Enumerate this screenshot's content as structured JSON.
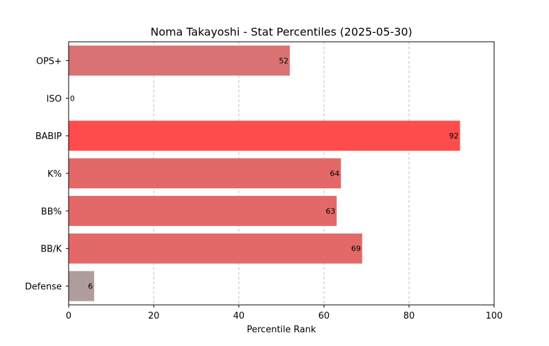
{
  "chart_data": {
    "type": "bar",
    "orientation": "horizontal",
    "title": "Noma Takayoshi - Stat Percentiles (2025-05-30)",
    "xlabel": "Percentile Rank",
    "ylabel": "",
    "xlim": [
      0,
      100
    ],
    "xticks": [
      0,
      20,
      40,
      60,
      80,
      100
    ],
    "grid": "x-dashed",
    "categories": [
      "OPS+",
      "ISO",
      "BABIP",
      "K%",
      "BB%",
      "BB/K",
      "Defense"
    ],
    "values": [
      52,
      0,
      92,
      64,
      63,
      69,
      6
    ],
    "colors": [
      "#d97373",
      "#d97373",
      "#ff4d4d",
      "#e36969",
      "#e36969",
      "#e36969",
      "#b09c9c"
    ],
    "data_labels": [
      "52",
      "0",
      "92",
      "64",
      "63",
      "69",
      "6"
    ]
  }
}
